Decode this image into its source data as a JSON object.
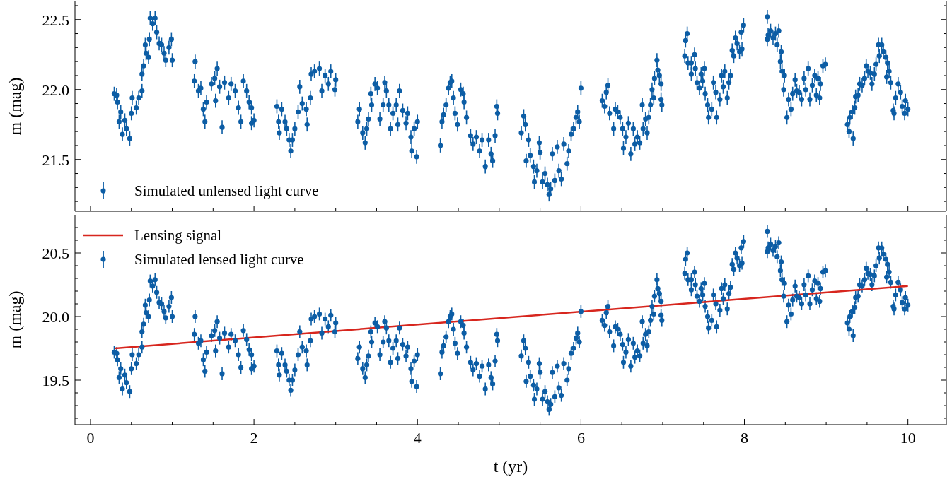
{
  "chart_data": [
    {
      "type": "scatter",
      "ylabel": "m (mag)",
      "xlim": [
        -0.19,
        10.47
      ],
      "ylim": [
        21.13,
        22.63
      ],
      "xticks": [
        0,
        {
          "value": 0.5,
          "label": null
        },
        {
          "value": 1,
          "label": null
        },
        {
          "value": 1.5,
          "label": null
        },
        2,
        {
          "value": 2.5,
          "label": null
        },
        {
          "value": 3,
          "label": null
        },
        {
          "value": 3.5,
          "label": null
        },
        4,
        {
          "value": 4.5,
          "label": null
        },
        {
          "value": 5,
          "label": null
        },
        {
          "value": 5.5,
          "label": null
        },
        6,
        {
          "value": 6.5,
          "label": null
        },
        {
          "value": 7,
          "label": null
        },
        {
          "value": 7.5,
          "label": null
        },
        8,
        {
          "value": 8.5,
          "label": null
        },
        {
          "value": 9,
          "label": null
        },
        {
          "value": 9.5,
          "label": null
        },
        10
      ],
      "yticks": [
        {
          "value": 21.2,
          "label": null
        },
        {
          "value": 21.3,
          "label": null
        },
        {
          "value": 21.4,
          "label": null
        },
        21.5,
        {
          "value": 21.6,
          "label": null
        },
        {
          "value": 21.7,
          "label": null
        },
        {
          "value": 21.8,
          "label": null
        },
        {
          "value": 21.9,
          "label": null
        },
        {
          "value": 22,
          "label": "22.0"
        },
        {
          "value": 22.1,
          "label": null
        },
        {
          "value": 22.2,
          "label": null
        },
        {
          "value": 22.3,
          "label": null
        },
        {
          "value": 22.4,
          "label": null
        },
        22.5,
        {
          "value": 22.6,
          "label": null
        }
      ],
      "tick_labels": "y",
      "legend": "bottom left",
      "marker": "circle",
      "series": [
        {
          "name": "Simulated unlensed light curve",
          "color": "#0c5da5",
          "x": [
            0.29,
            0.32,
            0.33,
            0.35,
            0.37,
            0.39,
            0.42,
            0.44,
            0.48,
            0.5,
            0.51,
            0.56,
            0.59,
            0.63,
            0.63,
            0.65,
            0.67,
            0.68,
            0.71,
            0.72,
            0.73,
            0.76,
            0.79,
            0.81,
            0.84,
            0.87,
            0.9,
            0.92,
            0.96,
            0.99,
            1.0,
            1.27,
            1.28,
            1.32,
            1.35,
            1.38,
            1.4,
            1.42,
            1.48,
            1.52,
            1.53,
            1.55,
            1.58,
            1.61,
            1.64,
            1.69,
            1.72,
            1.77,
            1.81,
            1.84,
            1.87,
            1.91,
            1.94,
            1.97,
            1.97,
            2.0,
            2.28,
            2.3,
            2.31,
            2.34,
            2.38,
            2.4,
            2.43,
            2.45,
            2.47,
            2.5,
            2.54,
            2.56,
            2.59,
            2.64,
            2.65,
            2.69,
            2.7,
            2.74,
            2.8,
            2.83,
            2.87,
            2.91,
            2.94,
            2.99,
            3.0,
            3.27,
            3.29,
            3.33,
            3.36,
            3.38,
            3.4,
            3.43,
            3.44,
            3.48,
            3.51,
            3.54,
            3.58,
            3.6,
            3.62,
            3.65,
            3.67,
            3.7,
            3.74,
            3.76,
            3.78,
            3.82,
            3.86,
            3.88,
            3.92,
            3.93,
            3.96,
            3.99,
            4.0,
            4.28,
            4.3,
            4.32,
            4.35,
            4.38,
            4.4,
            4.42,
            4.44,
            4.46,
            4.49,
            4.53,
            4.56,
            4.57,
            4.6,
            4.65,
            4.68,
            4.72,
            4.76,
            4.79,
            4.83,
            4.87,
            4.9,
            4.92,
            4.95,
            4.97,
            4.98,
            5.27,
            5.3,
            5.32,
            5.33,
            5.36,
            5.38,
            5.42,
            5.43,
            5.46,
            5.49,
            5.5,
            5.53,
            5.56,
            5.59,
            5.61,
            5.63,
            5.65,
            5.68,
            5.71,
            5.73,
            5.76,
            5.79,
            5.83,
            5.85,
            5.88,
            5.91,
            5.94,
            5.96,
            5.98,
            6.0,
            6.26,
            6.29,
            6.31,
            6.33,
            6.35,
            6.4,
            6.42,
            6.45,
            6.48,
            6.51,
            6.52,
            6.55,
            6.58,
            6.61,
            6.64,
            6.66,
            6.69,
            6.72,
            6.75,
            6.76,
            6.79,
            6.81,
            6.83,
            6.85,
            6.87,
            6.89,
            6.9,
            6.93,
            6.94,
            6.96,
            6.98,
            6.98,
            6.99,
            7.27,
            7.28,
            7.3,
            7.31,
            7.35,
            7.35,
            7.39,
            7.4,
            7.42,
            7.45,
            7.47,
            7.49,
            7.51,
            7.52,
            7.55,
            7.56,
            7.6,
            7.62,
            7.65,
            7.66,
            7.7,
            7.72,
            7.74,
            7.76,
            7.79,
            7.81,
            7.83,
            7.85,
            7.87,
            7.89,
            7.91,
            7.94,
            7.96,
            7.97,
            7.99,
            8.28,
            8.28,
            8.29,
            8.32,
            8.35,
            8.38,
            8.4,
            8.42,
            8.44,
            8.45,
            8.46,
            8.48,
            8.49,
            8.52,
            8.54,
            8.57,
            8.59,
            8.62,
            8.64,
            8.67,
            8.7,
            8.73,
            8.75,
            8.78,
            8.8,
            8.83,
            8.86,
            8.88,
            8.9,
            8.92,
            8.93,
            8.96,
            8.99,
            9.26,
            9.28,
            9.29,
            9.32,
            9.33,
            9.35,
            9.36,
            9.39,
            9.41,
            9.44,
            9.47,
            9.49,
            9.51,
            9.54,
            9.56,
            9.59,
            9.61,
            9.64,
            9.65,
            9.68,
            9.7,
            9.73,
            9.74,
            9.75,
            9.77,
            9.79,
            9.82,
            9.83,
            9.85,
            9.88,
            9.91,
            9.93,
            9.96,
            9.97,
            10.0
          ],
          "values": [
            21.97,
            21.96,
            21.91,
            21.77,
            21.84,
            21.68,
            21.78,
            21.72,
            21.65,
            21.83,
            21.94,
            21.87,
            21.94,
            21.99,
            22.11,
            22.17,
            22.32,
            22.26,
            22.23,
            22.36,
            22.51,
            22.47,
            22.51,
            22.41,
            22.33,
            22.32,
            22.26,
            22.21,
            22.3,
            22.36,
            22.21,
            22.06,
            22.2,
            21.99,
            22.01,
            21.86,
            21.77,
            21.91,
            22.04,
            22.08,
            21.92,
            22.15,
            22.02,
            21.73,
            22.05,
            21.94,
            22.04,
            21.99,
            21.87,
            21.77,
            22.06,
            21.99,
            21.91,
            21.76,
            21.87,
            21.78,
            21.88,
            21.77,
            21.69,
            21.86,
            21.77,
            21.72,
            21.64,
            21.56,
            21.64,
            21.72,
            21.84,
            22.02,
            21.9,
            21.86,
            21.75,
            21.94,
            22.11,
            22.13,
            22.15,
            21.99,
            22.1,
            22.04,
            22.13,
            22.0,
            22.07,
            21.77,
            21.86,
            21.69,
            21.62,
            21.72,
            21.79,
            21.97,
            21.89,
            22.04,
            22.01,
            21.79,
            21.89,
            22.05,
            21.99,
            21.89,
            21.72,
            21.83,
            21.89,
            21.75,
            21.99,
            21.85,
            21.76,
            21.83,
            21.66,
            21.56,
            21.72,
            21.52,
            21.77,
            21.6,
            21.77,
            21.82,
            21.89,
            22.01,
            22.05,
            22.06,
            21.94,
            21.83,
            21.75,
            22.0,
            21.97,
            21.91,
            21.8,
            21.67,
            21.61,
            21.66,
            21.56,
            21.64,
            21.45,
            21.64,
            21.54,
            21.49,
            21.67,
            21.88,
            21.83,
            21.69,
            21.81,
            21.75,
            21.49,
            21.64,
            21.53,
            21.45,
            21.34,
            21.42,
            21.62,
            21.55,
            21.34,
            21.4,
            21.32,
            21.25,
            21.29,
            21.54,
            21.35,
            21.59,
            21.42,
            21.36,
            21.61,
            21.47,
            21.56,
            21.68,
            21.72,
            21.8,
            21.84,
            21.77,
            22.01,
            21.92,
            21.88,
            21.98,
            22.03,
            21.83,
            21.72,
            21.86,
            21.84,
            21.8,
            21.72,
            21.58,
            21.66,
            21.76,
            21.54,
            21.72,
            21.61,
            21.66,
            21.62,
            21.89,
            21.72,
            21.79,
            21.69,
            21.8,
            21.89,
            22.0,
            21.94,
            22.08,
            22.21,
            22.14,
            22.1,
            22.04,
            21.93,
            21.89,
            22.24,
            22.35,
            22.4,
            22.19,
            22.19,
            22.11,
            22.25,
            22.15,
            22.05,
            22.01,
            22.11,
            22.06,
            22.15,
            21.97,
            21.89,
            21.8,
            21.86,
            22.05,
            21.98,
            21.8,
            21.93,
            22.1,
            22.02,
            22.13,
            21.94,
            22.05,
            22.1,
            22.28,
            22.24,
            22.37,
            22.33,
            22.27,
            22.41,
            22.29,
            22.46,
            22.52,
            22.36,
            22.39,
            22.42,
            22.37,
            22.4,
            22.32,
            22.42,
            22.2,
            22.27,
            22.13,
            22.0,
            22.1,
            21.8,
            21.93,
            21.86,
            21.97,
            22.07,
            21.99,
            21.98,
            21.93,
            22.08,
            22.0,
            22.15,
            21.93,
            22.03,
            22.1,
            21.96,
            22.08,
            21.94,
            22.04,
            22.17,
            22.18,
            21.75,
            21.7,
            21.8,
            21.84,
            21.65,
            21.87,
            21.95,
            21.96,
            22.04,
            22.03,
            22.08,
            22.17,
            22.13,
            22.12,
            22.04,
            22.11,
            22.18,
            22.32,
            22.24,
            22.32,
            22.27,
            22.23,
            22.09,
            22.19,
            22.13,
            22.05,
            21.85,
            21.83,
            21.94,
            22.04,
            21.98,
            21.88,
            21.83,
            21.92,
            21.86
          ],
          "errors": [
            0.05,
            0.05,
            0.05,
            0.05,
            0.05,
            0.05,
            0.05,
            0.05,
            0.05,
            0.05,
            0.05,
            0.05,
            0.05,
            0.05,
            0.05,
            0.05,
            0.05,
            0.05,
            0.05,
            0.05,
            0.05,
            0.05,
            0.05,
            0.05,
            0.05,
            0.05,
            0.05,
            0.05,
            0.05,
            0.05,
            0.05,
            0.05,
            0.05,
            0.05,
            0.05,
            0.05,
            0.05,
            0.05,
            0.05,
            0.05,
            0.05,
            0.05,
            0.05,
            0.05,
            0.05,
            0.05,
            0.05,
            0.05,
            0.05,
            0.05,
            0.05,
            0.05,
            0.05,
            0.05,
            0.05,
            0.05,
            0.05,
            0.05,
            0.05,
            0.05,
            0.05,
            0.05,
            0.05,
            0.05,
            0.05,
            0.05,
            0.05,
            0.05,
            0.05,
            0.05,
            0.05,
            0.05,
            0.05,
            0.05,
            0.05,
            0.05,
            0.05,
            0.05,
            0.05,
            0.05,
            0.05,
            0.05,
            0.05,
            0.05,
            0.05,
            0.05,
            0.05,
            0.05,
            0.05,
            0.05,
            0.05,
            0.05,
            0.05,
            0.05,
            0.05,
            0.05,
            0.05,
            0.05,
            0.05,
            0.05,
            0.05,
            0.05,
            0.05,
            0.05,
            0.05,
            0.05,
            0.05,
            0.05,
            0.05,
            0.05,
            0.05,
            0.05,
            0.05,
            0.05,
            0.05,
            0.05,
            0.05,
            0.05,
            0.05,
            0.05,
            0.05,
            0.05,
            0.05,
            0.05,
            0.05,
            0.05,
            0.05,
            0.05,
            0.05,
            0.05,
            0.05,
            0.05,
            0.05,
            0.05,
            0.05,
            0.05,
            0.05,
            0.05,
            0.05,
            0.05,
            0.05,
            0.05,
            0.05,
            0.05,
            0.05,
            0.05,
            0.05,
            0.05,
            0.05,
            0.05,
            0.05,
            0.05,
            0.05,
            0.05,
            0.05,
            0.05,
            0.05,
            0.05,
            0.05,
            0.05,
            0.05,
            0.05,
            0.05,
            0.05,
            0.05,
            0.05,
            0.05,
            0.05,
            0.05,
            0.05,
            0.05,
            0.05,
            0.05,
            0.05,
            0.05,
            0.05,
            0.05,
            0.05,
            0.05,
            0.05,
            0.05,
            0.05,
            0.05,
            0.05,
            0.05,
            0.05,
            0.05,
            0.05,
            0.05,
            0.05,
            0.05,
            0.05,
            0.05,
            0.05,
            0.05,
            0.05,
            0.05,
            0.05,
            0.05,
            0.05,
            0.05,
            0.05,
            0.05,
            0.05,
            0.05,
            0.05,
            0.05,
            0.05,
            0.05,
            0.05,
            0.05,
            0.05,
            0.05,
            0.05,
            0.05,
            0.05,
            0.05,
            0.05,
            0.05,
            0.05,
            0.05,
            0.05,
            0.05,
            0.05,
            0.05,
            0.05,
            0.05,
            0.05,
            0.05,
            0.05,
            0.05,
            0.05,
            0.05,
            0.05,
            0.05,
            0.05,
            0.05,
            0.05,
            0.05,
            0.05,
            0.05,
            0.05,
            0.05,
            0.05,
            0.05,
            0.05,
            0.05,
            0.05,
            0.05,
            0.05,
            0.05,
            0.05,
            0.05,
            0.05,
            0.05,
            0.05,
            0.05,
            0.05,
            0.05,
            0.05,
            0.05,
            0.05,
            0.05,
            0.05,
            0.05,
            0.05,
            0.05,
            0.05,
            0.05,
            0.05,
            0.05,
            0.05,
            0.05,
            0.05,
            0.05,
            0.05,
            0.05,
            0.05,
            0.05,
            0.05,
            0.05,
            0.05,
            0.05,
            0.05,
            0.05,
            0.05,
            0.05,
            0.05,
            0.05,
            0.05,
            0.05,
            0.05,
            0.05,
            0.05,
            0.05,
            0.05,
            0.05,
            0.05,
            0.05,
            0.05,
            0.05
          ]
        }
      ]
    },
    {
      "type": "scatter",
      "xlabel": "t (yr)",
      "ylabel": "m (mag)",
      "xlim": [
        -0.19,
        10.47
      ],
      "ylim": [
        19.15,
        20.8
      ],
      "xticks": [
        0,
        {
          "value": 0.5,
          "label": null
        },
        {
          "value": 1,
          "label": null
        },
        {
          "value": 1.5,
          "label": null
        },
        2,
        {
          "value": 2.5,
          "label": null
        },
        {
          "value": 3,
          "label": null
        },
        {
          "value": 3.5,
          "label": null
        },
        4,
        {
          "value": 4.5,
          "label": null
        },
        {
          "value": 5,
          "label": null
        },
        {
          "value": 5.5,
          "label": null
        },
        6,
        {
          "value": 6.5,
          "label": null
        },
        {
          "value": 7,
          "label": null
        },
        {
          "value": 7.5,
          "label": null
        },
        8,
        {
          "value": 8.5,
          "label": null
        },
        {
          "value": 9,
          "label": null
        },
        {
          "value": 9.5,
          "label": null
        },
        10
      ],
      "yticks": [
        {
          "value": 19.2,
          "label": null
        },
        {
          "value": 19.3,
          "label": null
        },
        {
          "value": 19.4,
          "label": null
        },
        19.5,
        {
          "value": 19.6,
          "label": null
        },
        {
          "value": 19.7,
          "label": null
        },
        {
          "value": 19.8,
          "label": null
        },
        {
          "value": 19.9,
          "label": null
        },
        {
          "value": 20,
          "label": "20.0"
        },
        {
          "value": 20.1,
          "label": null
        },
        {
          "value": 20.2,
          "label": null
        },
        {
          "value": 20.3,
          "label": null
        },
        {
          "value": 20.4,
          "label": null
        },
        20.5,
        {
          "value": 20.6,
          "label": null
        },
        {
          "value": 20.7,
          "label": null
        }
      ],
      "legend": "top left",
      "marker": "circle",
      "series": [
        {
          "name": "Lensing signal",
          "type": "line",
          "color": "#d7261e",
          "line_style": "solid",
          "marker": "none",
          "x": [
            0.3,
            10.0
          ],
          "values": [
            19.75,
            20.24
          ]
        },
        {
          "name": "Simulated lensed light curve",
          "color": "#0c5da5",
          "x": [
            0.29,
            0.32,
            0.33,
            0.35,
            0.37,
            0.39,
            0.42,
            0.44,
            0.48,
            0.5,
            0.51,
            0.56,
            0.59,
            0.63,
            0.63,
            0.65,
            0.67,
            0.68,
            0.71,
            0.72,
            0.73,
            0.76,
            0.79,
            0.81,
            0.84,
            0.87,
            0.9,
            0.92,
            0.96,
            0.99,
            1.0,
            1.27,
            1.28,
            1.32,
            1.35,
            1.38,
            1.4,
            1.42,
            1.48,
            1.52,
            1.53,
            1.55,
            1.58,
            1.61,
            1.64,
            1.69,
            1.72,
            1.77,
            1.81,
            1.84,
            1.87,
            1.91,
            1.94,
            1.97,
            1.97,
            2.0,
            2.28,
            2.3,
            2.31,
            2.34,
            2.38,
            2.4,
            2.43,
            2.45,
            2.47,
            2.5,
            2.54,
            2.56,
            2.59,
            2.64,
            2.65,
            2.69,
            2.7,
            2.74,
            2.8,
            2.83,
            2.87,
            2.91,
            2.94,
            2.99,
            3.0,
            3.27,
            3.29,
            3.33,
            3.36,
            3.38,
            3.4,
            3.43,
            3.44,
            3.48,
            3.51,
            3.54,
            3.58,
            3.6,
            3.62,
            3.65,
            3.67,
            3.7,
            3.74,
            3.76,
            3.78,
            3.82,
            3.86,
            3.88,
            3.92,
            3.93,
            3.96,
            3.99,
            4.0,
            4.28,
            4.3,
            4.32,
            4.35,
            4.38,
            4.4,
            4.42,
            4.44,
            4.46,
            4.49,
            4.53,
            4.56,
            4.57,
            4.6,
            4.65,
            4.68,
            4.72,
            4.76,
            4.79,
            4.83,
            4.87,
            4.9,
            4.92,
            4.95,
            4.97,
            4.98,
            5.27,
            5.3,
            5.32,
            5.33,
            5.36,
            5.38,
            5.42,
            5.43,
            5.46,
            5.49,
            5.5,
            5.53,
            5.56,
            5.59,
            5.61,
            5.63,
            5.65,
            5.68,
            5.71,
            5.73,
            5.76,
            5.79,
            5.83,
            5.85,
            5.88,
            5.91,
            5.94,
            5.96,
            5.98,
            6.0,
            6.26,
            6.29,
            6.31,
            6.33,
            6.35,
            6.4,
            6.42,
            6.45,
            6.48,
            6.51,
            6.52,
            6.55,
            6.58,
            6.61,
            6.64,
            6.66,
            6.69,
            6.72,
            6.75,
            6.76,
            6.79,
            6.81,
            6.83,
            6.85,
            6.87,
            6.89,
            6.9,
            6.93,
            6.94,
            6.96,
            6.98,
            6.98,
            6.99,
            7.27,
            7.28,
            7.3,
            7.31,
            7.35,
            7.35,
            7.39,
            7.4,
            7.42,
            7.45,
            7.47,
            7.49,
            7.51,
            7.52,
            7.55,
            7.56,
            7.6,
            7.62,
            7.65,
            7.66,
            7.7,
            7.72,
            7.74,
            7.76,
            7.79,
            7.81,
            7.83,
            7.85,
            7.87,
            7.89,
            7.91,
            7.94,
            7.96,
            7.97,
            7.99,
            8.28,
            8.28,
            8.29,
            8.32,
            8.35,
            8.38,
            8.4,
            8.42,
            8.44,
            8.45,
            8.46,
            8.48,
            8.49,
            8.52,
            8.54,
            8.57,
            8.59,
            8.62,
            8.64,
            8.67,
            8.7,
            8.73,
            8.75,
            8.78,
            8.8,
            8.83,
            8.86,
            8.88,
            8.9,
            8.92,
            8.93,
            8.96,
            8.99,
            9.26,
            9.28,
            9.29,
            9.32,
            9.33,
            9.35,
            9.36,
            9.39,
            9.41,
            9.44,
            9.47,
            9.49,
            9.51,
            9.54,
            9.56,
            9.59,
            9.61,
            9.64,
            9.65,
            9.68,
            9.7,
            9.73,
            9.74,
            9.75,
            9.77,
            9.79,
            9.82,
            9.83,
            9.85,
            9.88,
            9.91,
            9.93,
            9.96,
            9.97,
            10.0
          ],
          "values": [
            19.72,
            19.71,
            19.66,
            19.52,
            19.59,
            19.43,
            19.54,
            19.48,
            19.41,
            19.59,
            19.7,
            19.63,
            19.7,
            19.76,
            19.88,
            19.94,
            20.09,
            20.03,
            20.0,
            20.13,
            20.28,
            20.24,
            20.29,
            20.19,
            20.11,
            20.1,
            20.04,
            19.99,
            20.08,
            20.15,
            20.0,
            19.86,
            20.0,
            19.79,
            19.81,
            19.66,
            19.57,
            19.72,
            19.85,
            19.89,
            19.73,
            19.96,
            19.83,
            19.55,
            19.87,
            19.76,
            19.86,
            19.81,
            19.7,
            19.6,
            19.89,
            19.82,
            19.74,
            19.59,
            19.7,
            19.61,
            19.73,
            19.62,
            19.54,
            19.71,
            19.62,
            19.57,
            19.5,
            19.42,
            19.5,
            19.58,
            19.7,
            19.88,
            19.76,
            19.73,
            19.62,
            19.81,
            19.98,
            20.0,
            20.02,
            19.87,
            19.98,
            19.92,
            20.01,
            19.88,
            19.95,
            19.67,
            19.76,
            19.59,
            19.52,
            19.62,
            19.69,
            19.88,
            19.8,
            19.95,
            19.92,
            19.7,
            19.8,
            19.96,
            19.91,
            19.81,
            19.64,
            19.75,
            19.81,
            19.67,
            19.91,
            19.78,
            19.69,
            19.76,
            19.59,
            19.49,
            19.65,
            19.45,
            19.7,
            19.55,
            19.72,
            19.77,
            19.84,
            19.96,
            20.0,
            20.02,
            19.9,
            19.79,
            19.71,
            19.96,
            19.93,
            19.87,
            19.76,
            19.64,
            19.58,
            19.63,
            19.53,
            19.61,
            19.43,
            19.62,
            19.52,
            19.47,
            19.65,
            19.86,
            19.81,
            19.69,
            19.81,
            19.75,
            19.49,
            19.64,
            19.53,
            19.46,
            19.35,
            19.43,
            19.63,
            19.56,
            19.35,
            19.41,
            19.33,
            19.27,
            19.31,
            19.56,
            19.37,
            19.61,
            19.44,
            19.38,
            19.63,
            19.5,
            19.59,
            19.71,
            19.75,
            19.83,
            19.87,
            19.8,
            20.04,
            19.97,
            19.93,
            20.03,
            20.08,
            19.88,
            19.77,
            19.92,
            19.9,
            19.86,
            19.78,
            19.64,
            19.72,
            19.82,
            19.61,
            19.79,
            19.68,
            19.73,
            19.69,
            19.96,
            19.79,
            19.86,
            19.77,
            19.88,
            19.97,
            20.08,
            20.02,
            20.16,
            20.29,
            20.22,
            20.18,
            20.12,
            20.01,
            19.97,
            20.34,
            20.45,
            20.5,
            20.29,
            20.29,
            20.21,
            20.35,
            20.25,
            20.16,
            20.12,
            20.22,
            20.17,
            20.26,
            20.08,
            20.0,
            19.91,
            19.97,
            20.17,
            20.1,
            19.92,
            20.05,
            20.22,
            20.14,
            20.25,
            20.06,
            20.18,
            20.23,
            20.41,
            20.37,
            20.5,
            20.46,
            20.4,
            20.54,
            20.42,
            20.59,
            20.67,
            20.51,
            20.54,
            20.57,
            20.52,
            20.55,
            20.47,
            20.58,
            20.36,
            20.43,
            20.29,
            20.16,
            20.26,
            19.96,
            20.09,
            20.02,
            20.13,
            20.24,
            20.16,
            20.15,
            20.1,
            20.25,
            20.17,
            20.32,
            20.1,
            20.21,
            20.28,
            20.14,
            20.26,
            20.12,
            20.22,
            20.35,
            20.36,
            19.95,
            19.9,
            20.0,
            20.04,
            19.85,
            20.07,
            20.15,
            20.16,
            20.25,
            20.24,
            20.29,
            20.38,
            20.34,
            20.33,
            20.25,
            20.32,
            20.4,
            20.54,
            20.46,
            20.54,
            20.49,
            20.45,
            20.31,
            20.41,
            20.35,
            20.27,
            20.08,
            20.06,
            20.17,
            20.27,
            20.21,
            20.11,
            20.06,
            20.15,
            20.09
          ],
          "errors": [
            0.05,
            0.05,
            0.05,
            0.05,
            0.05,
            0.05,
            0.05,
            0.05,
            0.05,
            0.05,
            0.05,
            0.05,
            0.05,
            0.05,
            0.05,
            0.05,
            0.05,
            0.05,
            0.05,
            0.05,
            0.05,
            0.05,
            0.05,
            0.05,
            0.05,
            0.05,
            0.05,
            0.05,
            0.05,
            0.05,
            0.05,
            0.05,
            0.05,
            0.05,
            0.05,
            0.05,
            0.05,
            0.05,
            0.05,
            0.05,
            0.05,
            0.05,
            0.05,
            0.05,
            0.05,
            0.05,
            0.05,
            0.05,
            0.05,
            0.05,
            0.05,
            0.05,
            0.05,
            0.05,
            0.05,
            0.05,
            0.05,
            0.05,
            0.05,
            0.05,
            0.05,
            0.05,
            0.05,
            0.05,
            0.05,
            0.05,
            0.05,
            0.05,
            0.05,
            0.05,
            0.05,
            0.05,
            0.05,
            0.05,
            0.05,
            0.05,
            0.05,
            0.05,
            0.05,
            0.05,
            0.05,
            0.05,
            0.05,
            0.05,
            0.05,
            0.05,
            0.05,
            0.05,
            0.05,
            0.05,
            0.05,
            0.05,
            0.05,
            0.05,
            0.05,
            0.05,
            0.05,
            0.05,
            0.05,
            0.05,
            0.05,
            0.05,
            0.05,
            0.05,
            0.05,
            0.05,
            0.05,
            0.05,
            0.05,
            0.05,
            0.05,
            0.05,
            0.05,
            0.05,
            0.05,
            0.05,
            0.05,
            0.05,
            0.05,
            0.05,
            0.05,
            0.05,
            0.05,
            0.05,
            0.05,
            0.05,
            0.05,
            0.05,
            0.05,
            0.05,
            0.05,
            0.05,
            0.05,
            0.05,
            0.05,
            0.05,
            0.05,
            0.05,
            0.05,
            0.05,
            0.05,
            0.05,
            0.05,
            0.05,
            0.05,
            0.05,
            0.05,
            0.05,
            0.05,
            0.05,
            0.05,
            0.05,
            0.05,
            0.05,
            0.05,
            0.05,
            0.05,
            0.05,
            0.05,
            0.05,
            0.05,
            0.05,
            0.05,
            0.05,
            0.05,
            0.05,
            0.05,
            0.05,
            0.05,
            0.05,
            0.05,
            0.05,
            0.05,
            0.05,
            0.05,
            0.05,
            0.05,
            0.05,
            0.05,
            0.05,
            0.05,
            0.05,
            0.05,
            0.05,
            0.05,
            0.05,
            0.05,
            0.05,
            0.05,
            0.05,
            0.05,
            0.05,
            0.05,
            0.05,
            0.05,
            0.05,
            0.05,
            0.05,
            0.05,
            0.05,
            0.05,
            0.05,
            0.05,
            0.05,
            0.05,
            0.05,
            0.05,
            0.05,
            0.05,
            0.05,
            0.05,
            0.05,
            0.05,
            0.05,
            0.05,
            0.05,
            0.05,
            0.05,
            0.05,
            0.05,
            0.05,
            0.05,
            0.05,
            0.05,
            0.05,
            0.05,
            0.05,
            0.05,
            0.05,
            0.05,
            0.05,
            0.05,
            0.05,
            0.05,
            0.05,
            0.05,
            0.05,
            0.05,
            0.05,
            0.05,
            0.05,
            0.05,
            0.05,
            0.05,
            0.05,
            0.05,
            0.05,
            0.05,
            0.05,
            0.05,
            0.05,
            0.05,
            0.05,
            0.05,
            0.05,
            0.05,
            0.05,
            0.05,
            0.05,
            0.05,
            0.05,
            0.05,
            0.05,
            0.05,
            0.05,
            0.05,
            0.05,
            0.05,
            0.05,
            0.05,
            0.05,
            0.05,
            0.05,
            0.05,
            0.05,
            0.05,
            0.05,
            0.05,
            0.05,
            0.05,
            0.05,
            0.05,
            0.05,
            0.05,
            0.05,
            0.05,
            0.05,
            0.05,
            0.05,
            0.05,
            0.05,
            0.05,
            0.05,
            0.05,
            0.05,
            0.05,
            0.05,
            0.05,
            0.05,
            0.05,
            0.05
          ]
        }
      ]
    }
  ]
}
